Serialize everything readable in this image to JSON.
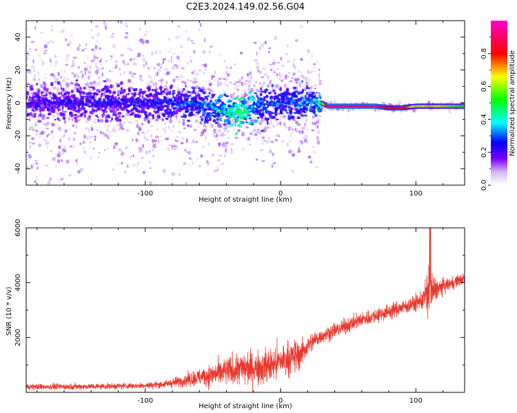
{
  "figure_title": "C2E3.2024.149.02.56.G04",
  "chart_data": [
    {
      "type": "heatmap",
      "title": "C2E3.2024.149.02.56.G04",
      "xlabel": "Height of straight line (km)",
      "ylabel": "Frequency (Hz)",
      "xlim": [
        -188,
        136
      ],
      "ylim": [
        -50,
        50
      ],
      "x_ticks": [
        -100,
        0,
        100
      ],
      "x_tick_labels": [
        "-100",
        "0",
        "100"
      ],
      "y_ticks": [
        -40,
        -20,
        0,
        20,
        40
      ],
      "y_tick_labels": [
        "-40",
        "-20",
        "0",
        "20",
        "40"
      ],
      "colorbar": {
        "label": "Normalized spectral amplitude",
        "range": [
          0,
          1
        ],
        "ticks": [
          0.0,
          0.2,
          0.4,
          0.6,
          0.8
        ],
        "tick_labels": [
          "0.0",
          "0.2",
          "0.4",
          "0.6",
          "0.8"
        ],
        "colormap": "white-purple-blue-cyan-green-yellow-red-magenta"
      },
      "ridge_frequency": {
        "x": [
          -188,
          -150,
          -100,
          -80,
          -60,
          -50,
          -40,
          -35,
          -30,
          -25,
          -20,
          -15,
          0,
          20,
          30,
          35,
          50,
          70,
          80,
          90,
          100,
          110,
          120,
          136
        ],
        "y": [
          0,
          0,
          0,
          0,
          -1,
          -2,
          -5,
          -6,
          -6,
          -5,
          -3,
          -2,
          0,
          0,
          0,
          -2,
          -2,
          -2,
          -3,
          -3,
          -2,
          -2,
          -2,
          -2
        ]
      },
      "ridge_amplitude": {
        "x": [
          -188,
          -100,
          -60,
          -40,
          -30,
          -20,
          -15,
          0,
          25,
          30,
          35,
          50,
          70,
          80,
          90,
          100,
          110,
          136
        ],
        "values": [
          0.22,
          0.25,
          0.3,
          0.4,
          0.5,
          0.4,
          0.3,
          0.3,
          0.35,
          0.5,
          0.9,
          0.9,
          0.9,
          0.8,
          0.85,
          0.6,
          0.7,
          0.5
        ]
      },
      "noise_spread_hz": {
        "x": [
          -188,
          -60,
          -20,
          -15,
          0,
          28,
          30,
          136
        ],
        "values": [
          50,
          45,
          25,
          50,
          35,
          40,
          3,
          3
        ]
      }
    },
    {
      "type": "line",
      "title": "",
      "xlabel": "Height of straight line (km)",
      "ylabel": "SNR (10 * v/v)",
      "xlim": [
        -188,
        136
      ],
      "ylim": [
        0,
        6000
      ],
      "x_ticks": [
        -100,
        0,
        100
      ],
      "x_tick_labels": [
        "-100",
        "0",
        "100"
      ],
      "y_ticks": [
        2000,
        4000,
        6000
      ],
      "y_tick_labels": [
        "2000",
        "4000",
        "6000"
      ],
      "series": [
        {
          "color": "#e8392e",
          "x": [
            -188,
            -160,
            -130,
            -100,
            -85,
            -70,
            -60,
            -50,
            -40,
            -30,
            -20,
            -10,
            -5,
            0,
            10,
            15,
            20,
            25,
            30,
            40,
            50,
            60,
            70,
            80,
            90,
            100,
            105,
            108,
            110,
            112,
            115,
            120,
            125,
            130,
            136
          ],
          "y": [
            200,
            210,
            220,
            250,
            300,
            450,
            550,
            650,
            750,
            850,
            900,
            950,
            1000,
            1150,
            1300,
            1400,
            1700,
            1900,
            2050,
            2250,
            2450,
            2650,
            2800,
            2950,
            3100,
            3250,
            3400,
            3600,
            3800,
            3650,
            3750,
            3850,
            3950,
            4050,
            4150
          ],
          "noise_amplitude": [
            120,
            120,
            120,
            120,
            150,
            250,
            350,
            450,
            550,
            650,
            700,
            700,
            750,
            700,
            650,
            600,
            400,
            350,
            300,
            300,
            300,
            300,
            300,
            300,
            300,
            320,
            400,
            800,
            1500,
            900,
            400,
            300,
            250,
            250,
            250
          ]
        }
      ]
    }
  ]
}
